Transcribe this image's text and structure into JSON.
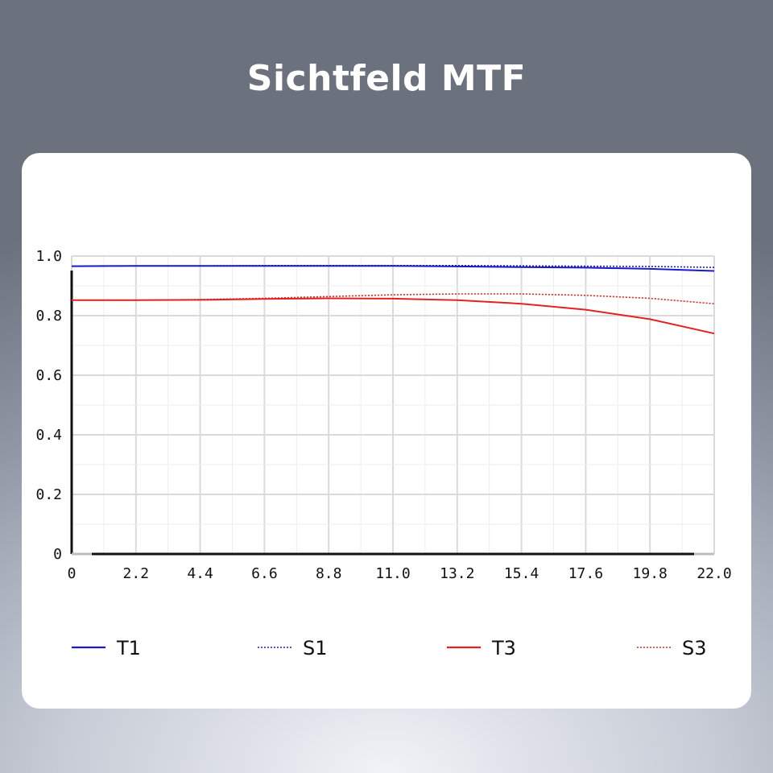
{
  "title": "Sichtfeld MTF",
  "chart_data": {
    "type": "line",
    "title": "Sichtfeld MTF",
    "xlabel": "",
    "ylabel": "",
    "xlim": [
      0,
      22.0
    ],
    "ylim": [
      0,
      1.0
    ],
    "grid": true,
    "legend_position": "bottom",
    "x_ticks": [
      "0",
      "2.2",
      "4.4",
      "6.6",
      "8.8",
      "11.0",
      "13.2",
      "15.4",
      "17.6",
      "19.8",
      "22.0"
    ],
    "y_ticks": [
      "0",
      "0.2",
      "0.4",
      "0.6",
      "0.8",
      "1.0"
    ],
    "x": [
      0,
      2.2,
      4.4,
      6.6,
      8.8,
      11.0,
      13.2,
      15.4,
      17.6,
      19.8,
      22.0
    ],
    "series": [
      {
        "name": "T1",
        "color": "#1a1acc",
        "style": "solid",
        "values": [
          0.966,
          0.967,
          0.967,
          0.967,
          0.967,
          0.967,
          0.965,
          0.963,
          0.961,
          0.957,
          0.95
        ]
      },
      {
        "name": "S1",
        "color": "#1a1acc",
        "style": "dotted",
        "values": [
          0.966,
          0.967,
          0.967,
          0.968,
          0.968,
          0.968,
          0.968,
          0.967,
          0.966,
          0.965,
          0.962
        ]
      },
      {
        "name": "T3",
        "color": "#e32222",
        "style": "solid",
        "values": [
          0.852,
          0.852,
          0.853,
          0.856,
          0.858,
          0.857,
          0.852,
          0.84,
          0.82,
          0.788,
          0.74
        ]
      },
      {
        "name": "S3",
        "color": "#e32222",
        "style": "dotted",
        "values": [
          0.852,
          0.852,
          0.854,
          0.858,
          0.864,
          0.87,
          0.873,
          0.873,
          0.868,
          0.858,
          0.84
        ]
      }
    ]
  }
}
